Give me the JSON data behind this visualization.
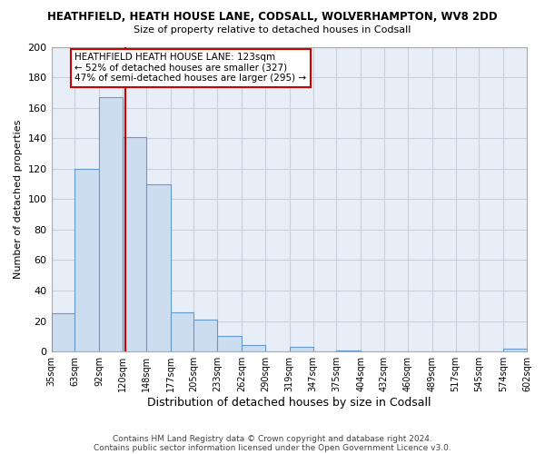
{
  "title1": "HEATHFIELD, HEATH HOUSE LANE, CODSALL, WOLVERHAMPTON, WV8 2DD",
  "title2": "Size of property relative to detached houses in Codsall",
  "xlabel": "Distribution of detached houses by size in Codsall",
  "ylabel": "Number of detached properties",
  "bar_edges": [
    35,
    63,
    92,
    120,
    148,
    177,
    205,
    233,
    262,
    290,
    319,
    347,
    375,
    404,
    432,
    460,
    489,
    517,
    545,
    574,
    602
  ],
  "bar_heights": [
    25,
    120,
    167,
    141,
    110,
    26,
    21,
    10,
    4,
    0,
    3,
    0,
    1,
    0,
    0,
    0,
    0,
    0,
    0,
    2
  ],
  "bar_color": "#ccddf0",
  "bar_edge_color": "#6699cc",
  "reference_line_x": 123,
  "ylim": [
    0,
    200
  ],
  "yticks": [
    0,
    20,
    40,
    60,
    80,
    100,
    120,
    140,
    160,
    180,
    200
  ],
  "annotation_title": "HEATHFIELD HEATH HOUSE LANE: 123sqm",
  "annotation_line1": "← 52% of detached houses are smaller (327)",
  "annotation_line2": "47% of semi-detached houses are larger (295) →",
  "footer1": "Contains HM Land Registry data © Crown copyright and database right 2024.",
  "footer2": "Contains public sector information licensed under the Open Government Licence v3.0.",
  "background_color": "#ffffff",
  "plot_area_color": "#e8eef8",
  "grid_color": "#c8d0e0",
  "annotation_box_color": "#ffffff",
  "annotation_box_edge": "#cc0000",
  "ref_line_color": "#cc0000",
  "title1_fontsize": 8.5,
  "title2_fontsize": 8.0
}
